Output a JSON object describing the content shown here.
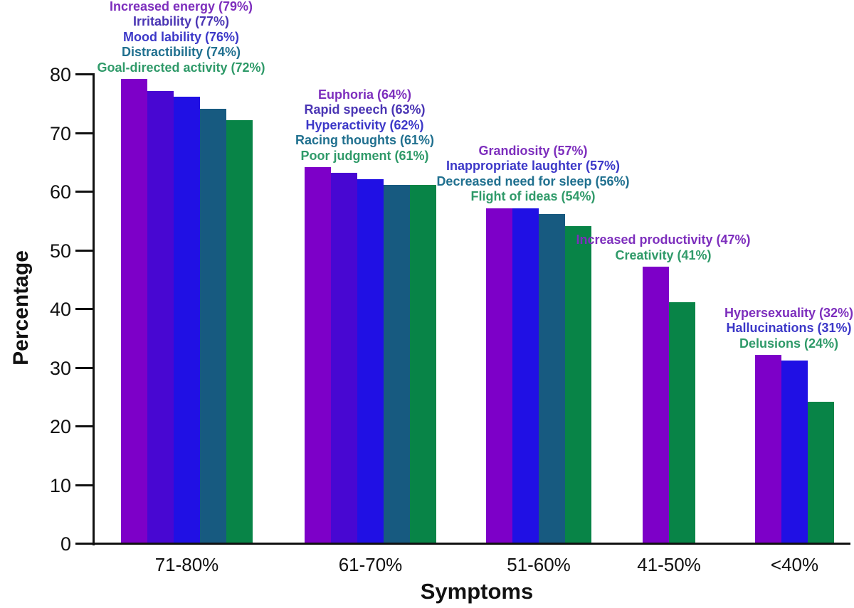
{
  "chart_data": {
    "type": "bar",
    "title": "",
    "xlabel": "Symptoms",
    "ylabel": "Percentage",
    "ylim": [
      0,
      80
    ],
    "yticks": [
      0,
      10,
      20,
      30,
      40,
      50,
      60,
      70,
      80
    ],
    "grid": false,
    "legend": false,
    "axis_color": "#111111",
    "annotation_format": "{label} ({value}%)",
    "bar_colors": {
      "purple": "#7D00C8",
      "indigo": "#4807D2",
      "blue": "#2010E4",
      "teal": "#175A80",
      "green": "#088447"
    },
    "text_colors": {
      "purple": "#7D2EBD",
      "indigo": "#4A35B4",
      "blue": "#3C38C8",
      "teal": "#20708F",
      "green": "#2F9A69"
    },
    "categories": [
      "71-80%",
      "61-70%",
      "51-60%",
      "41-50%",
      "<40%"
    ],
    "groups": [
      {
        "category": "71-80%",
        "bars": [
          {
            "label": "Increased energy",
            "value": 79,
            "color": "purple"
          },
          {
            "label": "Irritability",
            "value": 77,
            "color": "indigo"
          },
          {
            "label": "Mood lability",
            "value": 76,
            "color": "blue"
          },
          {
            "label": "Distractibility",
            "value": 74,
            "color": "teal"
          },
          {
            "label": "Goal-directed activity",
            "value": 72,
            "color": "green"
          }
        ]
      },
      {
        "category": "61-70%",
        "bars": [
          {
            "label": "Euphoria",
            "value": 64,
            "color": "purple"
          },
          {
            "label": "Rapid speech",
            "value": 63,
            "color": "indigo"
          },
          {
            "label": "Hyperactivity",
            "value": 62,
            "color": "blue"
          },
          {
            "label": "Racing thoughts",
            "value": 61,
            "color": "teal"
          },
          {
            "label": "Poor judgment",
            "value": 61,
            "color": "green"
          }
        ]
      },
      {
        "category": "51-60%",
        "bars": [
          {
            "label": "Grandiosity",
            "value": 57,
            "color": "purple"
          },
          {
            "label": "Inappropriate laughter",
            "value": 57,
            "color": "blue"
          },
          {
            "label": "Decreased need for sleep",
            "value": 56,
            "color": "teal"
          },
          {
            "label": "Flight of ideas",
            "value": 54,
            "color": "green"
          }
        ]
      },
      {
        "category": "41-50%",
        "bars": [
          {
            "label": "Increased productivity",
            "value": 47,
            "color": "purple"
          },
          {
            "label": "Creativity",
            "value": 41,
            "color": "green"
          }
        ]
      },
      {
        "category": "<40%",
        "bars": [
          {
            "label": "Hypersexuality",
            "value": 32,
            "color": "purple"
          },
          {
            "label": "Hallucinations",
            "value": 31,
            "color": "blue"
          },
          {
            "label": "Delusions",
            "value": 24,
            "color": "green"
          }
        ]
      }
    ]
  }
}
